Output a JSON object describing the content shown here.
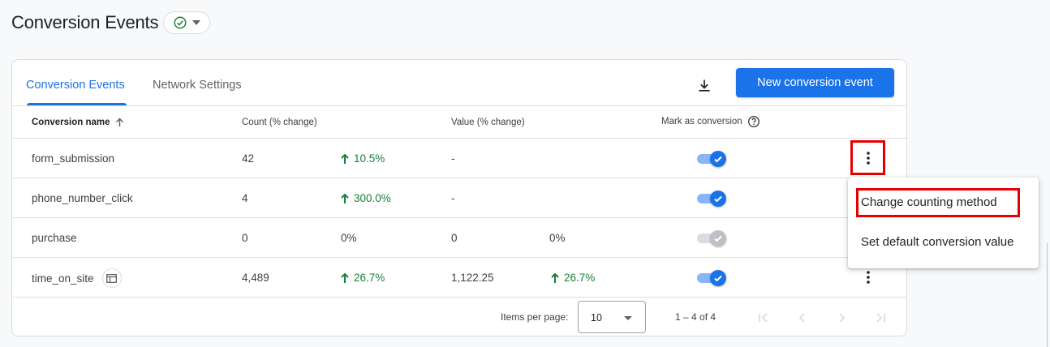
{
  "header": {
    "title": "Conversion Events"
  },
  "tabs": [
    {
      "label": "Conversion Events",
      "active": true
    },
    {
      "label": "Network Settings",
      "active": false
    }
  ],
  "toolbar": {
    "new_button": "New conversion event",
    "download_icon": "download-icon"
  },
  "table": {
    "columns": [
      "Conversion name",
      "Count (% change)",
      "Value (% change)",
      "Mark as conversion"
    ],
    "rows": [
      {
        "name": "form_submission",
        "count": "42",
        "count_change": "10.5%",
        "count_up": true,
        "value": "-",
        "value_change": "",
        "value_up": false,
        "marked": true
      },
      {
        "name": "phone_number_click",
        "count": "4",
        "count_change": "300.0%",
        "count_up": true,
        "value": "-",
        "value_change": "",
        "value_up": false,
        "marked": true
      },
      {
        "name": "purchase",
        "count": "0",
        "count_change": "0%",
        "count_up": false,
        "value": "0",
        "value_change": "0%",
        "value_up": false,
        "marked": true,
        "disabled": true
      },
      {
        "name": "time_on_site",
        "count": "4,489",
        "count_change": "26.7%",
        "count_up": true,
        "value": "1,122.25",
        "value_change": "26.7%",
        "value_up": true,
        "marked": true
      }
    ]
  },
  "pagination": {
    "label": "Items per page:",
    "per_page": "10",
    "range": "1 – 4 of 4"
  },
  "menu": {
    "items": [
      "Change counting method",
      "Set default conversion value"
    ]
  },
  "colors": {
    "accent": "#1a73e8",
    "positive": "#188038",
    "highlight": "#e60000"
  }
}
